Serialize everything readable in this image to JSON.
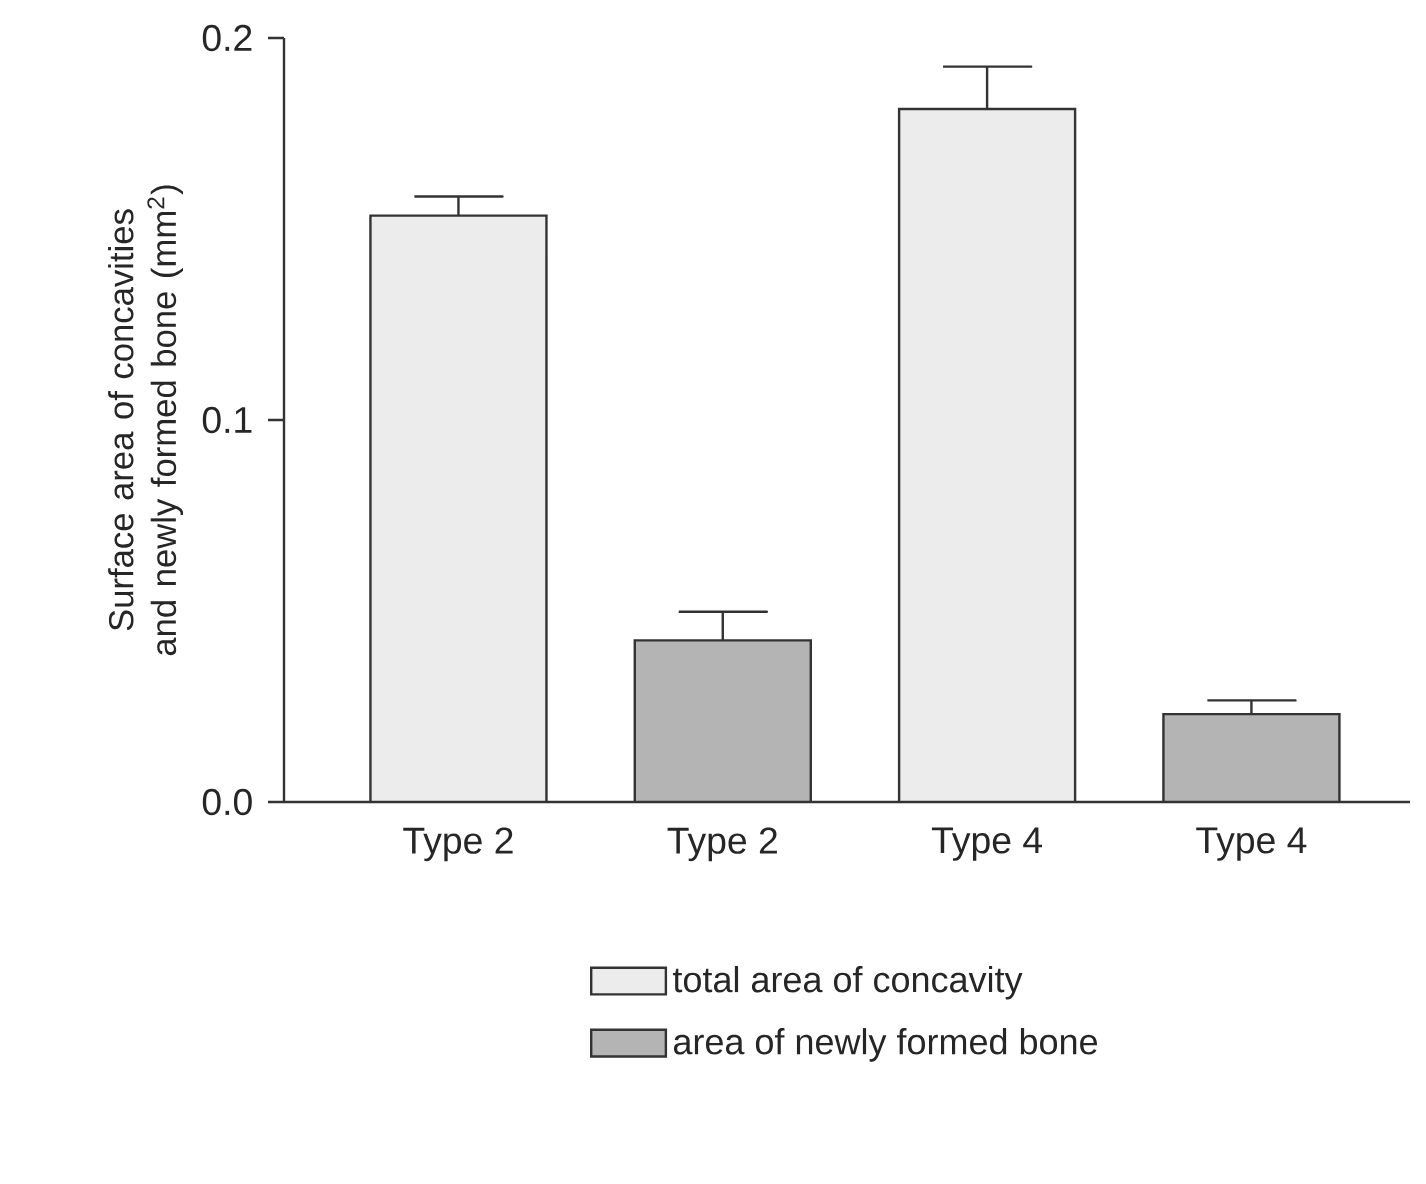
{
  "chart_data": {
    "type": "bar",
    "ylabel": "Surface area of concavities and newly formed bone (mm$^{2}$)",
    "categories": [
      "Type 2",
      "Type 2",
      "Type 4",
      "Type 4"
    ],
    "series": [
      {
        "name": "total area of concavity",
        "color": "#ececec",
        "values": [
          0.1535,
          null,
          0.1814,
          null
        ],
        "errors": [
          [
            0.1535,
            0.1585
          ],
          null,
          [
            0.1814,
            0.1925
          ],
          null
        ]
      },
      {
        "name": "area of newly formed bone",
        "color": "#b4b4b4",
        "values": [
          null,
          0.0423,
          null,
          0.023
        ],
        "errors": [
          null,
          [
            0.0423,
            0.0498
          ],
          null,
          [
            0.023,
            0.0266
          ]
        ]
      }
    ],
    "ylim": [
      0,
      0.2
    ],
    "yticks": [
      {
        "value": 0,
        "label": "0.0"
      },
      0.1,
      0.2
    ],
    "legend": "bottom"
  }
}
